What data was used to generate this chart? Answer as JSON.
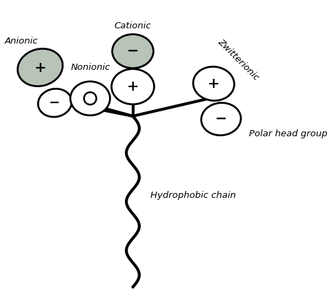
{
  "background_color": "#ffffff",
  "figsize": [
    4.74,
    4.38
  ],
  "dpi": 100,
  "labels": {
    "anionic": "Anionic",
    "nonionic": "Nonionic",
    "cationic": "Cationic",
    "zwitterionic": "Zwitterionic",
    "polar_head": "Polar head group",
    "hydrophobic": "Hydrophobic chain"
  },
  "gray_fill": "#b8c4b8",
  "white_fill": "#ffffff",
  "line_color": "#000000",
  "lw_ellipse": 2.0,
  "lw_chain": 3.0,
  "font_size_label": 9.5,
  "font_size_sign": 15
}
